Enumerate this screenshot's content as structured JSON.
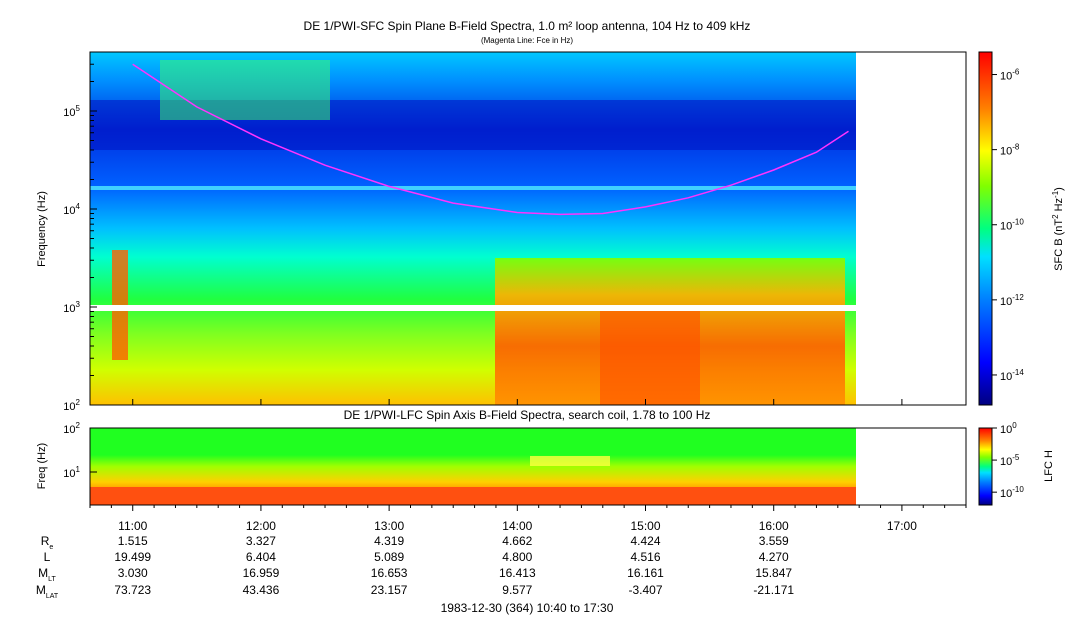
{
  "chart_data": [
    {
      "type": "heatmap",
      "title": "DE 1/PWI-SFC  Spin Plane B-Field Spectra, 1.0 m² loop antenna, 104 Hz to 409 kHz",
      "subtitle": "(Magenta Line: Fce in Hz)",
      "ylabel": "Frequency (Hz)",
      "yscale": "log",
      "ylim": [
        100,
        400000
      ],
      "y_ticks": [
        {
          "value": 100,
          "base": "10",
          "exp": "2"
        },
        {
          "value": 1000,
          "base": "10",
          "exp": "3"
        },
        {
          "value": 10000,
          "base": "10",
          "exp": "4"
        },
        {
          "value": 100000,
          "base": "10",
          "exp": "5"
        }
      ],
      "colorbar": {
        "label_main": "SFC B (nT",
        "label_sup1": "2",
        "label_mid": " Hz",
        "label_sup2": "-1",
        "label_end": ")",
        "ticks": [
          {
            "value": 1e-06,
            "base": "10",
            "exp": "-6"
          },
          {
            "value": 1e-08,
            "base": "10",
            "exp": "-8"
          },
          {
            "value": 1e-10,
            "base": "10",
            "exp": "-10"
          },
          {
            "value": 1e-12,
            "base": "10",
            "exp": "-12"
          },
          {
            "value": 1e-14,
            "base": "10",
            "exp": "-14"
          }
        ],
        "range_log10": [
          -14.8,
          -5.4
        ]
      },
      "fce_line_color": "#ff33ff",
      "fce_curve": {
        "time": [
          "11:00",
          "11:30",
          "12:00",
          "12:30",
          "13:00",
          "13:30",
          "14:00",
          "14:20",
          "14:40",
          "15:00",
          "15:20",
          "15:40",
          "16:00",
          "16:20",
          "16:35"
        ],
        "frequency_hz": [
          300000,
          110000,
          52000,
          28000,
          17000,
          11500,
          9200,
          8800,
          9000,
          10500,
          13000,
          17500,
          25000,
          38000,
          62000
        ]
      }
    },
    {
      "type": "heatmap",
      "title": "DE 1/PWI-LFC  Spin Axis B-Field Spectra, search coil, 1.78 to 100 Hz",
      "ylabel": "Freq (Hz)",
      "yscale": "log",
      "ylim": [
        1.78,
        100
      ],
      "y_ticks": [
        {
          "value": 10,
          "base": "10",
          "exp": "1"
        },
        {
          "value": 100,
          "base": "10",
          "exp": "2"
        }
      ],
      "colorbar": {
        "label": "LFC H",
        "ticks": [
          {
            "value": 1,
            "base": "10",
            "exp": "0"
          },
          {
            "value": 1e-05,
            "base": "10",
            "exp": "-5"
          },
          {
            "value": 1e-10,
            "base": "10",
            "exp": "-10"
          }
        ],
        "range_log10": [
          -12,
          0
        ]
      }
    }
  ],
  "x_axis": {
    "ticks": [
      "11:00",
      "12:00",
      "13:00",
      "14:00",
      "15:00",
      "16:00",
      "17:00"
    ],
    "range": [
      "10:40",
      "17:30"
    ]
  },
  "ephemeris": {
    "rows": [
      {
        "label": "R",
        "sub": "e",
        "values": [
          "1.515",
          "3.327",
          "4.319",
          "4.662",
          "4.424",
          "3.559"
        ]
      },
      {
        "label": "L",
        "sub": "",
        "values": [
          "19.499",
          "6.404",
          "5.089",
          "4.800",
          "4.516",
          "4.270"
        ]
      },
      {
        "label": "M",
        "sub": "LT",
        "values": [
          "3.030",
          "16.959",
          "16.653",
          "16.413",
          "16.161",
          "15.847"
        ]
      },
      {
        "label": "M",
        "sub": "LAT",
        "values": [
          "73.723",
          "43.436",
          "23.157",
          "9.577",
          "-3.407",
          "-21.171"
        ]
      }
    ]
  },
  "footer": "1983-12-30 (364) 10:40 to 17:30"
}
